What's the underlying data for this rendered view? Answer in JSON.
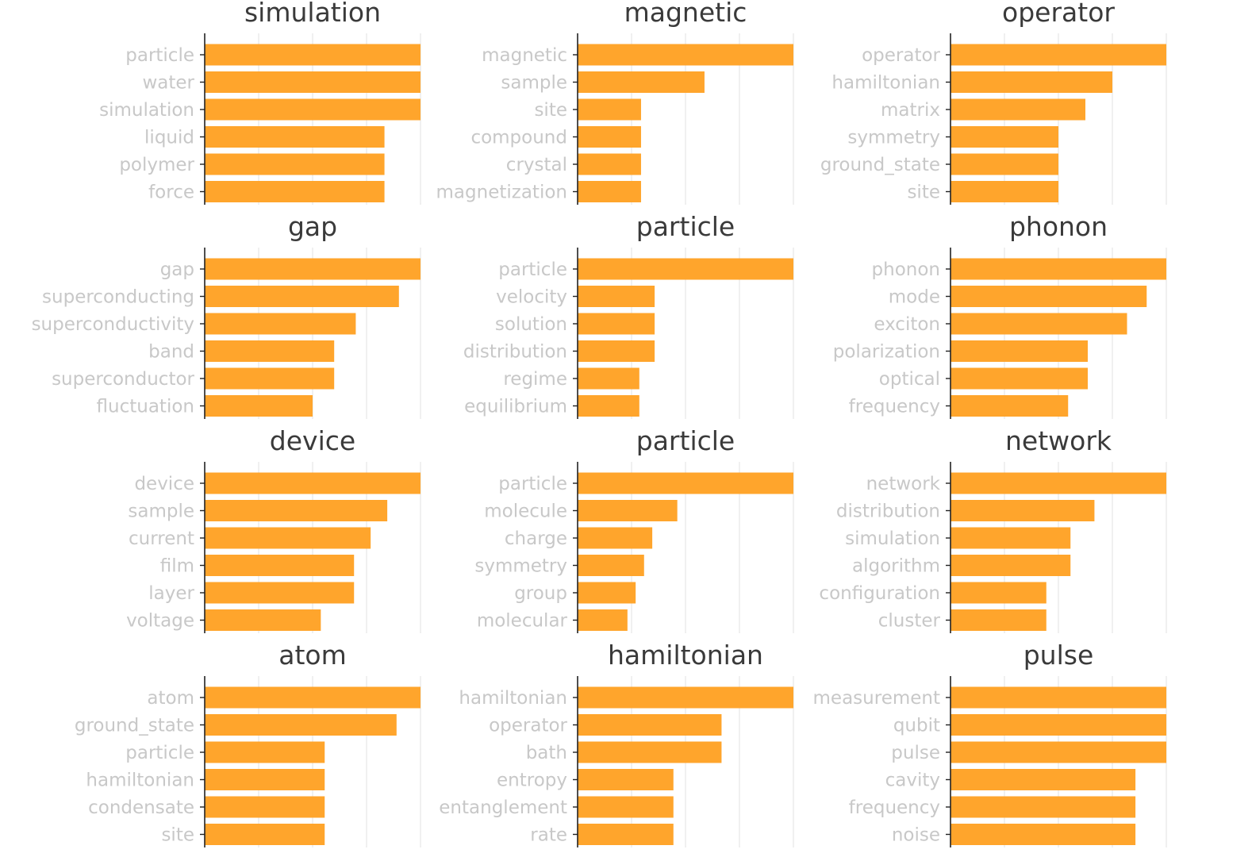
{
  "chart_data": [
    {
      "type": "bar",
      "orientation": "horizontal",
      "title": "simulation",
      "categories": [
        "particle",
        "water",
        "simulation",
        "liquid",
        "polymer",
        "force"
      ],
      "values": [
        1.0,
        1.0,
        1.0,
        0.833,
        0.833,
        0.833
      ],
      "xlim": [
        0,
        1.0
      ],
      "grid": true
    },
    {
      "type": "bar",
      "orientation": "horizontal",
      "title": "magnetic",
      "categories": [
        "magnetic",
        "sample",
        "site",
        "compound",
        "crystal",
        "magnetization"
      ],
      "values": [
        1.0,
        0.588,
        0.294,
        0.294,
        0.294,
        0.294
      ],
      "xlim": [
        0,
        1.0
      ],
      "grid": true
    },
    {
      "type": "bar",
      "orientation": "horizontal",
      "title": "operator",
      "categories": [
        "operator",
        "hamiltonian",
        "matrix",
        "symmetry",
        "ground_state",
        "site"
      ],
      "values": [
        1.0,
        0.75,
        0.625,
        0.5,
        0.5,
        0.5
      ],
      "xlim": [
        0,
        1.0
      ],
      "grid": true
    },
    {
      "type": "bar",
      "orientation": "horizontal",
      "title": "gap",
      "categories": [
        "gap",
        "superconducting",
        "superconductivity",
        "band",
        "superconductor",
        "fluctuation"
      ],
      "values": [
        1.0,
        0.9,
        0.7,
        0.6,
        0.6,
        0.5
      ],
      "xlim": [
        0,
        1.0
      ],
      "grid": true
    },
    {
      "type": "bar",
      "orientation": "horizontal",
      "title": "particle",
      "categories": [
        "particle",
        "velocity",
        "solution",
        "distribution",
        "regime",
        "equilibrium"
      ],
      "values": [
        1.0,
        0.357,
        0.357,
        0.357,
        0.286,
        0.286
      ],
      "xlim": [
        0,
        1.0
      ],
      "grid": true
    },
    {
      "type": "bar",
      "orientation": "horizontal",
      "title": "phonon",
      "categories": [
        "phonon",
        "mode",
        "exciton",
        "polarization",
        "optical",
        "frequency"
      ],
      "values": [
        1.0,
        0.909,
        0.818,
        0.636,
        0.636,
        0.545
      ],
      "xlim": [
        0,
        1.0
      ],
      "grid": true
    },
    {
      "type": "bar",
      "orientation": "horizontal",
      "title": "device",
      "categories": [
        "device",
        "sample",
        "current",
        "film",
        "layer",
        "voltage"
      ],
      "values": [
        1.0,
        0.846,
        0.769,
        0.692,
        0.692,
        0.538
      ],
      "xlim": [
        0,
        1.0
      ],
      "grid": true
    },
    {
      "type": "bar",
      "orientation": "horizontal",
      "title": "particle",
      "categories": [
        "particle",
        "molecule",
        "charge",
        "symmetry",
        "group",
        "molecular"
      ],
      "values": [
        1.0,
        0.462,
        0.346,
        0.308,
        0.269,
        0.231
      ],
      "xlim": [
        0,
        1.0
      ],
      "grid": true
    },
    {
      "type": "bar",
      "orientation": "horizontal",
      "title": "network",
      "categories": [
        "network",
        "distribution",
        "simulation",
        "algorithm",
        "configuration",
        "cluster"
      ],
      "values": [
        1.0,
        0.667,
        0.556,
        0.556,
        0.444,
        0.444
      ],
      "xlim": [
        0,
        1.0
      ],
      "grid": true
    },
    {
      "type": "bar",
      "orientation": "horizontal",
      "title": "atom",
      "categories": [
        "atom",
        "ground_state",
        "particle",
        "hamiltonian",
        "condensate",
        "site"
      ],
      "values": [
        1.0,
        0.889,
        0.556,
        0.556,
        0.556,
        0.556
      ],
      "xlim": [
        0,
        1.0
      ],
      "grid": true
    },
    {
      "type": "bar",
      "orientation": "horizontal",
      "title": "hamiltonian",
      "categories": [
        "hamiltonian",
        "operator",
        "bath",
        "entropy",
        "entanglement",
        "rate"
      ],
      "values": [
        1.0,
        0.667,
        0.667,
        0.444,
        0.444,
        0.444
      ],
      "xlim": [
        0,
        1.0
      ],
      "grid": true
    },
    {
      "type": "bar",
      "orientation": "horizontal",
      "title": "pulse",
      "categories": [
        "measurement",
        "qubit",
        "pulse",
        "cavity",
        "frequency",
        "noise"
      ],
      "values": [
        1.0,
        1.0,
        1.0,
        0.857,
        0.857,
        0.857
      ],
      "xlim": [
        0,
        1.0
      ],
      "grid": true
    }
  ],
  "colors": {
    "bar": "#ffa52c",
    "tick_label": "#c8c8c8",
    "title": "#3a3a3a"
  }
}
